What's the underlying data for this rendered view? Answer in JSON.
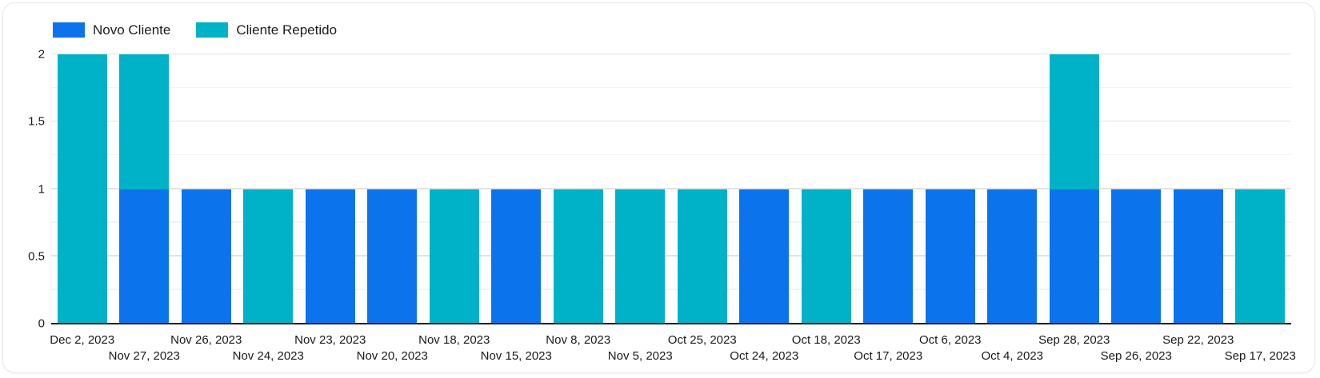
{
  "legend": {
    "items": [
      {
        "label": "Novo Cliente",
        "color": "#0b74ec"
      },
      {
        "label": "Cliente Repetido",
        "color": "#00b2c7"
      }
    ]
  },
  "chart_data": {
    "type": "bar",
    "stacked": true,
    "title": "",
    "xlabel": "",
    "ylabel": "",
    "grid": true,
    "legend_position": "top-left",
    "ylim": [
      0,
      2
    ],
    "yticks": [
      0,
      0.5,
      1,
      1.5,
      2
    ],
    "ytick_labels": [
      "0",
      "0.5",
      "1",
      "1.5",
      "2"
    ],
    "minor_gridlines": [
      0.25,
      0.75,
      1.25,
      1.75
    ],
    "categories": [
      "Dec 2, 2023",
      "Nov 27, 2023",
      "Nov 26, 2023",
      "Nov 24, 2023",
      "Nov 23, 2023",
      "Nov 20, 2023",
      "Nov 18, 2023",
      "Nov 15, 2023",
      "Nov 8, 2023",
      "Nov 5, 2023",
      "Oct 25, 2023",
      "Oct 24, 2023",
      "Oct 18, 2023",
      "Oct 17, 2023",
      "Oct 6, 2023",
      "Oct 4, 2023",
      "Sep 28, 2023",
      "Sep 26, 2023",
      "Sep 22, 2023",
      "Sep 17, 2023"
    ],
    "series": [
      {
        "name": "Novo Cliente",
        "color": "#0b74ec",
        "values": [
          0,
          1,
          1,
          0,
          1,
          1,
          0,
          1,
          0,
          0,
          0,
          1,
          0,
          1,
          1,
          1,
          1,
          1,
          1,
          0
        ]
      },
      {
        "name": "Cliente Repetido",
        "color": "#00b2c7",
        "values": [
          2,
          1,
          0,
          1,
          0,
          0,
          1,
          0,
          1,
          1,
          1,
          0,
          1,
          0,
          0,
          0,
          1,
          0,
          0,
          1
        ]
      }
    ]
  },
  "styles": {
    "axis_line_color": "#212121",
    "major_gridline_color": "#e2e2e2",
    "minor_gridline_color": "#f3f3f3",
    "label_color": "#1a1a1a",
    "card_border_color": "#e9e9e9",
    "background": "#ffffff"
  }
}
